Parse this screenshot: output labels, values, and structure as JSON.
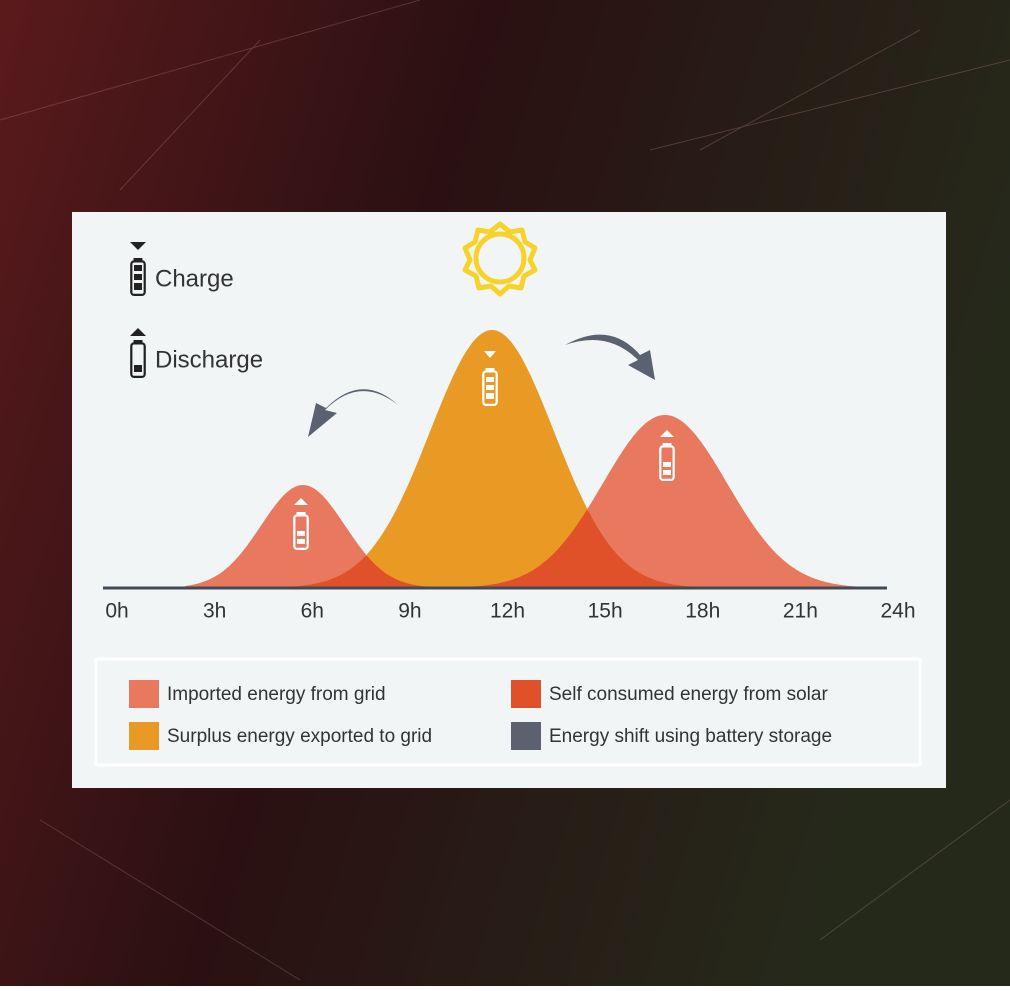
{
  "legend_top": {
    "charge": "Charge",
    "discharge": "Discharge"
  },
  "axis": {
    "xlim": [
      0,
      24
    ],
    "xticks": [
      {
        "value": 0,
        "label": "0h"
      },
      {
        "value": 3,
        "label": "3h"
      },
      {
        "value": 6,
        "label": "6h"
      },
      {
        "value": 9,
        "label": "9h"
      },
      {
        "value": 12,
        "label": "12h"
      },
      {
        "value": 15,
        "label": "15h"
      },
      {
        "value": 18,
        "label": "18h"
      },
      {
        "value": 21,
        "label": "21h"
      },
      {
        "value": 24,
        "label": "24h"
      }
    ]
  },
  "legend": [
    {
      "label": "Imported energy from grid",
      "color": "#e8795e"
    },
    {
      "label": "Self consumed energy from solar",
      "color": "#e0512a"
    },
    {
      "label": "Surplus energy exported to grid",
      "color": "#e89a24"
    },
    {
      "label": "Energy shift using battery storage",
      "color": "#5c6170"
    }
  ]
}
